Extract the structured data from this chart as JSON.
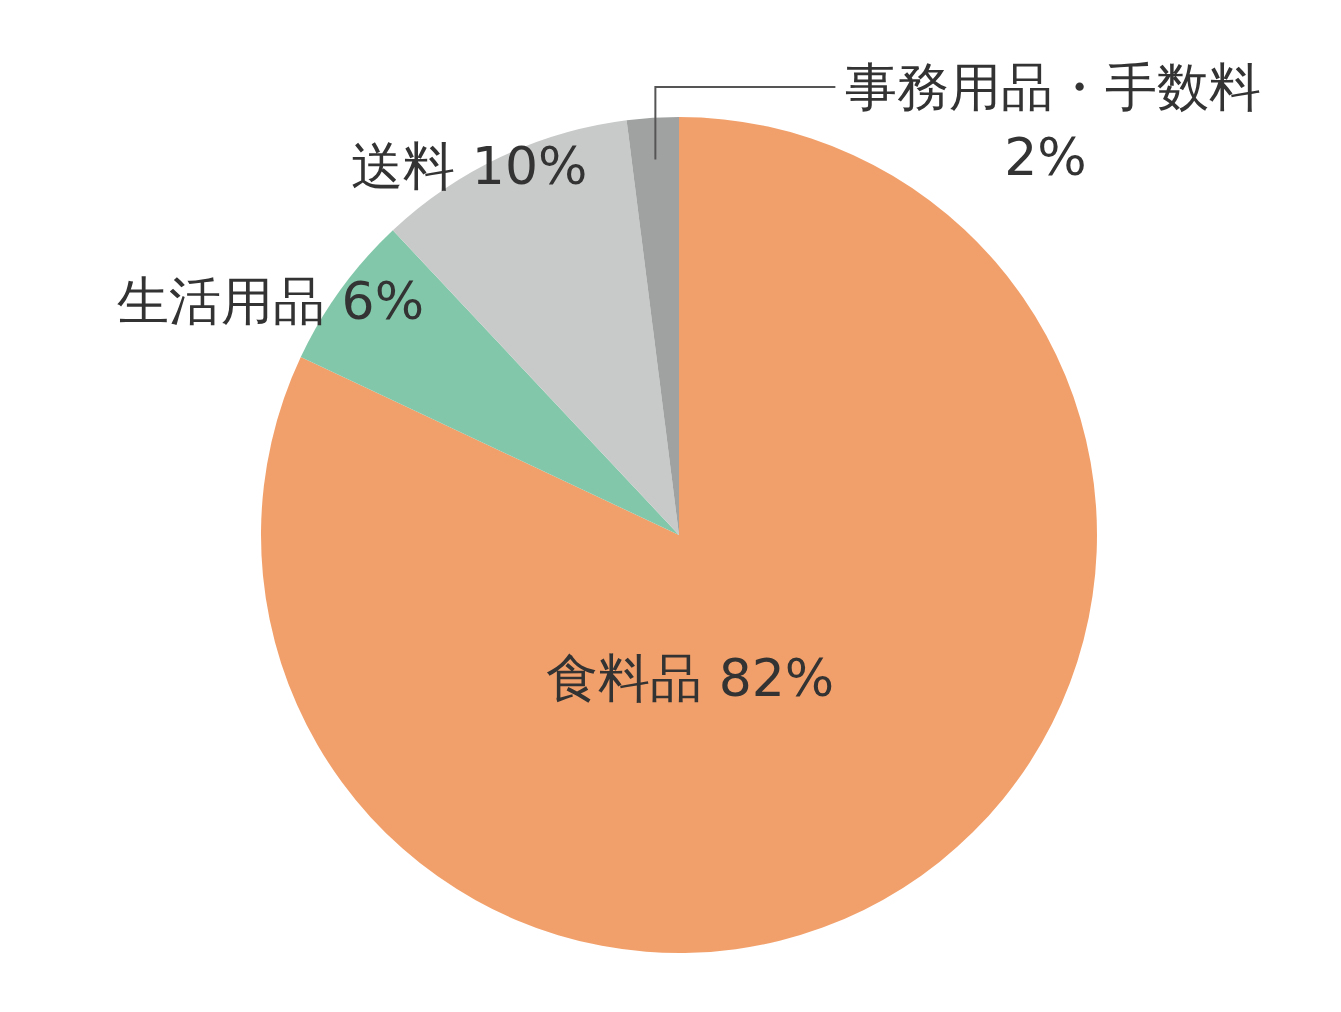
{
  "chart_data": {
    "type": "pie",
    "categories": [
      "食料品",
      "生活用品",
      "送料",
      "事務用品・手数料"
    ],
    "values": [
      82,
      6,
      10,
      2
    ],
    "colors": [
      "#f2a06b",
      "#82c7a9",
      "#c8cac9",
      "#a0a2a1"
    ],
    "value_labels": [
      "82%",
      "6%",
      "10%",
      "2%"
    ]
  }
}
